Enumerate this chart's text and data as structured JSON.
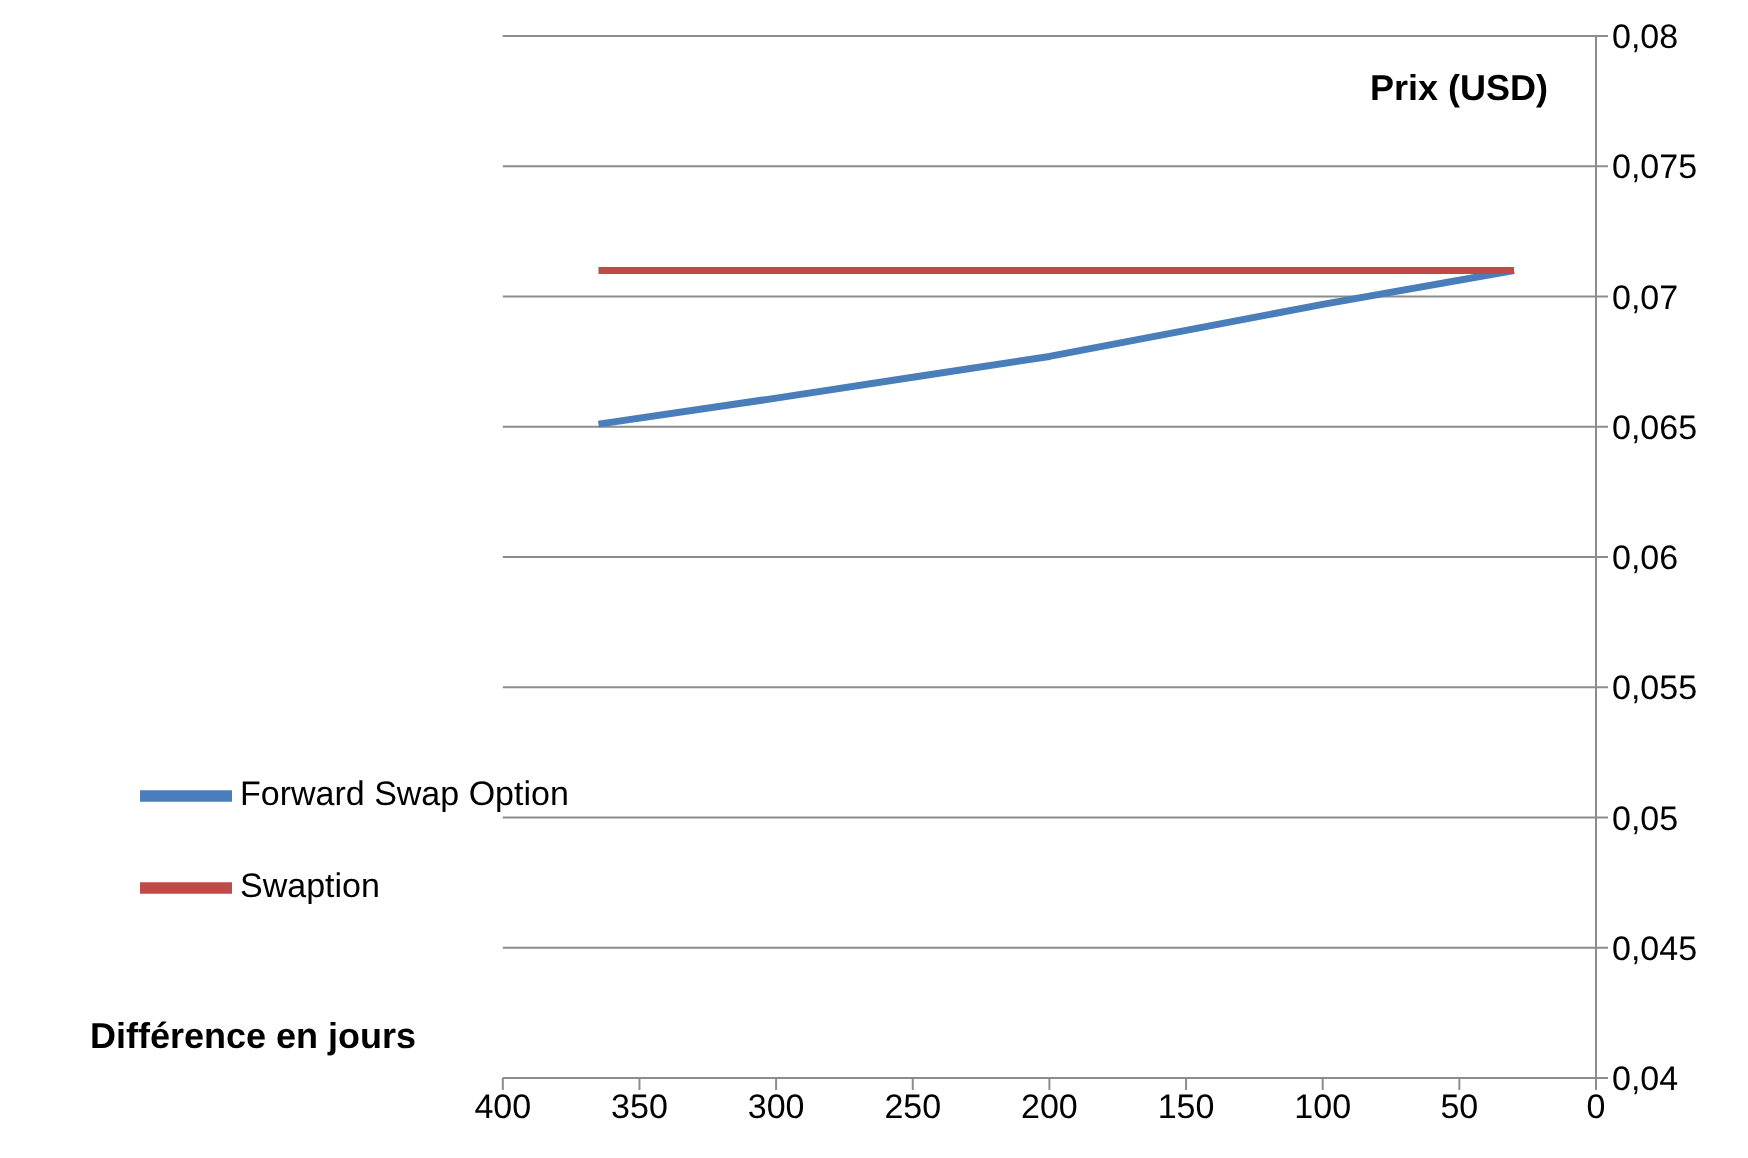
{
  "chart_data": {
    "type": "line",
    "xlabel": "Différence en jours",
    "ylabel": "Prix (USD)",
    "xlim": [
      400,
      0
    ],
    "xticks": [
      400,
      350,
      300,
      250,
      200,
      150,
      100,
      50,
      0
    ],
    "ylim": [
      0.04,
      0.08
    ],
    "yticks": [
      {
        "value": 0.04,
        "label": "0,04"
      },
      {
        "value": 0.045,
        "label": "0,045"
      },
      {
        "value": 0.05,
        "label": "0,05"
      },
      {
        "value": 0.055,
        "label": "0,055"
      },
      {
        "value": 0.06,
        "label": "0,06"
      },
      {
        "value": 0.065,
        "label": "0,065"
      },
      {
        "value": 0.07,
        "label": "0,07"
      },
      {
        "value": 0.075,
        "label": "0,075"
      },
      {
        "value": 0.08,
        "label": "0,08"
      }
    ],
    "grid": "y",
    "legend": "left",
    "marker": "none",
    "line_style": "solid",
    "series": [
      {
        "name": "Forward Swap Option",
        "color": "#4a7ebb",
        "x": [
          365,
          300,
          250,
          200,
          150,
          100,
          30
        ],
        "values": [
          0.0651,
          0.0661,
          0.0669,
          0.0677,
          0.0687,
          0.0697,
          0.071
        ]
      },
      {
        "name": "Swaption",
        "color": "#be4b48",
        "x": [
          365,
          30
        ],
        "values": [
          0.071,
          0.071
        ]
      }
    ]
  }
}
